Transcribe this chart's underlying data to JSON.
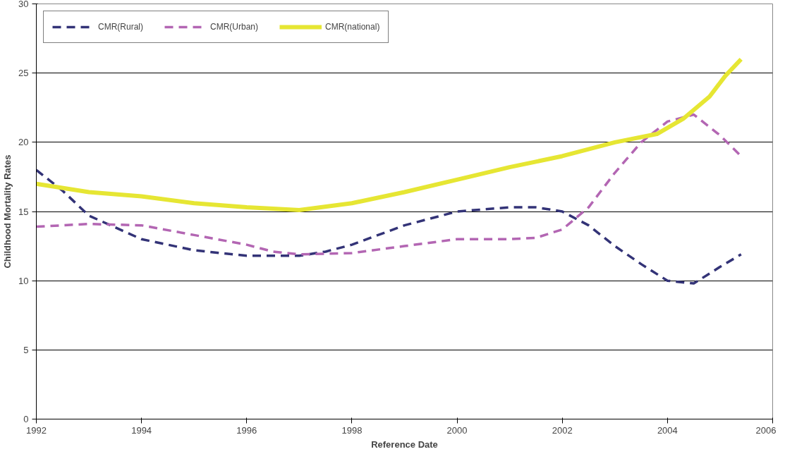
{
  "chart_data": {
    "type": "line",
    "xlabel": "Reference Date",
    "ylabel": "Childhood Mortality Rates",
    "xlim": [
      1992,
      2006
    ],
    "ylim": [
      0,
      30
    ],
    "xticks": [
      1992,
      1994,
      1996,
      1998,
      2000,
      2002,
      2004,
      2006
    ],
    "yticks": [
      0,
      5,
      10,
      15,
      20,
      25,
      30
    ],
    "grid": "y",
    "legend": "top left",
    "series": [
      {
        "name": "CMR(Rural)",
        "color": "#333377",
        "line_style": "dashed",
        "x": [
          1992,
          1992.5,
          1993,
          1994,
          1995,
          1996,
          1997,
          1997.5,
          1998,
          1999,
          2000,
          2001,
          2001.5,
          2002,
          2002.5,
          2003,
          2003.5,
          2004,
          2004.5,
          2005,
          2005.4
        ],
        "values": [
          18.0,
          16.5,
          14.7,
          13.0,
          12.2,
          11.8,
          11.8,
          12.1,
          12.6,
          14.0,
          15.0,
          15.3,
          15.3,
          15.0,
          14.0,
          12.5,
          11.2,
          10.0,
          9.8,
          11.0,
          11.9
        ]
      },
      {
        "name": "CMR(Urban)",
        "color": "#b366b3",
        "line_style": "dashed",
        "x": [
          1992,
          1992.5,
          1993,
          1994,
          1995,
          1996,
          1996.5,
          1997,
          1998,
          1999,
          2000,
          2001,
          2001.5,
          2002,
          2002.5,
          2003,
          2003.5,
          2004,
          2004.5,
          2005,
          2005.4
        ],
        "values": [
          13.9,
          14.0,
          14.1,
          14.0,
          13.3,
          12.6,
          12.1,
          11.9,
          12.0,
          12.5,
          13.0,
          13.0,
          13.1,
          13.7,
          15.3,
          17.8,
          20.0,
          21.5,
          22.0,
          20.5,
          19.0
        ]
      },
      {
        "name": "CMR(national)",
        "color": "#e6e633",
        "line_style": "solid",
        "x": [
          1992,
          1993,
          1994,
          1995,
          1996,
          1997,
          1998,
          1999,
          2000,
          2001,
          2002,
          2003,
          2003.8,
          2004.3,
          2004.8,
          2005.1,
          2005.4
        ],
        "values": [
          17.0,
          16.4,
          16.1,
          15.6,
          15.3,
          15.1,
          15.6,
          16.4,
          17.3,
          18.2,
          19.0,
          20.0,
          20.6,
          21.7,
          23.3,
          24.8,
          26.0
        ]
      }
    ]
  }
}
